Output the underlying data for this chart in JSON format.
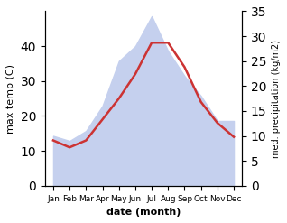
{
  "months": [
    "Jan",
    "Feb",
    "Mar",
    "Apr",
    "May",
    "Jun",
    "Jul",
    "Aug",
    "Sep",
    "Oct",
    "Nov",
    "Dec"
  ],
  "month_positions": [
    1,
    2,
    3,
    4,
    5,
    6,
    7,
    8,
    9,
    10,
    11,
    12
  ],
  "temp": [
    13,
    11,
    13,
    19,
    25,
    32,
    41,
    41,
    34,
    24,
    18,
    14
  ],
  "precip": [
    10,
    9,
    11,
    16,
    25,
    28,
    34,
    27,
    22,
    18,
    13,
    13
  ],
  "temp_color": "#cc3333",
  "precip_fill_color": "#c5d0ee",
  "temp_linewidth": 1.8,
  "ylabel_left": "max temp (C)",
  "ylabel_right": "med. precipitation (kg/m2)",
  "xlabel": "date (month)",
  "ylim_left": [
    0,
    50
  ],
  "ylim_right": [
    0,
    35
  ],
  "yticks_left": [
    0,
    10,
    20,
    30,
    40
  ],
  "yticks_right": [
    0,
    5,
    10,
    15,
    20,
    25,
    30,
    35
  ]
}
